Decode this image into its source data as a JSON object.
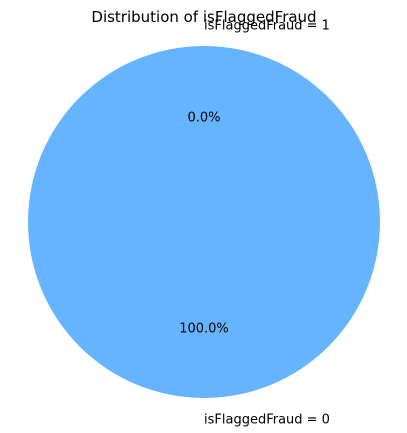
{
  "chart_data": {
    "type": "pie",
    "title": "Distribution of isFlaggedFraud",
    "categories": [
      "isFlaggedFraud = 0",
      "isFlaggedFraud = 1"
    ],
    "values": [
      100.0,
      0.0
    ],
    "percent_labels": [
      "100.0%",
      "0.0%"
    ],
    "colors": [
      "#66b3ff",
      "#ff9999"
    ],
    "start_angle_deg": 90,
    "legend": "none"
  }
}
